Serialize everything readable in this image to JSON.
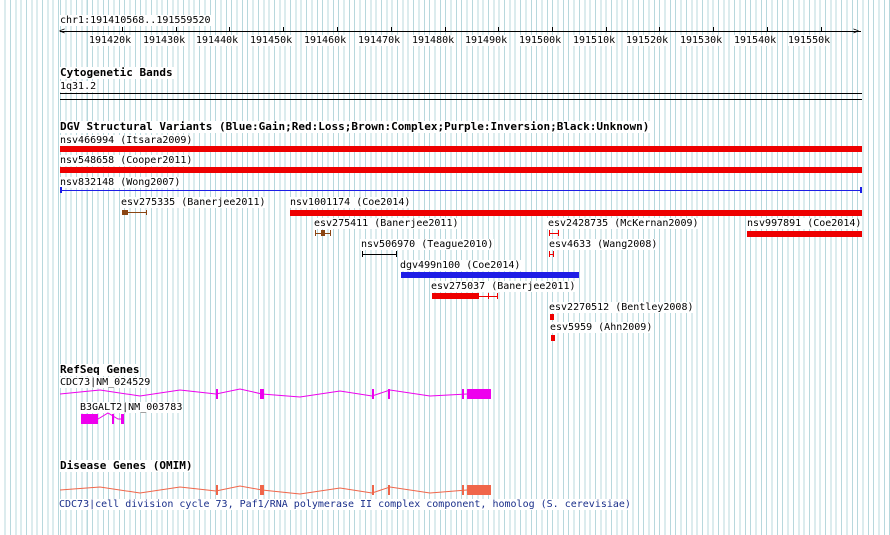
{
  "ruler": {
    "position": "chr1:191410568..191559520",
    "ticks": [
      "191420k",
      "191430k",
      "191440k",
      "191450k",
      "191460k",
      "191470k",
      "191480k",
      "191490k",
      "191500k",
      "191510k",
      "191520k",
      "191530k",
      "191540k",
      "191550k"
    ]
  },
  "cytoband": {
    "title": "Cytogenetic Bands",
    "band": "1q31.2"
  },
  "dgv": {
    "title": "DGV Structural Variants (Blue:Gain;Red:Loss;Brown:Complex;Purple:Inversion;Black:Unknown)",
    "variants": [
      {
        "label": "nsv466994 (Itsara2009)",
        "type": "loss"
      },
      {
        "label": "nsv548658 (Cooper2011)",
        "type": "loss"
      },
      {
        "label": "nsv832148 (Wong2007)",
        "type": "gain"
      },
      {
        "label": "esv275335 (Banerjee2011)",
        "type": "complex"
      },
      {
        "label": "nsv1001174 (Coe2014)",
        "type": "loss"
      },
      {
        "label": "esv275411 (Banerjee2011)",
        "type": "complex"
      },
      {
        "label": "esv2428735 (McKernan2009)",
        "type": "loss"
      },
      {
        "label": "nsv997891 (Coe2014)",
        "type": "loss"
      },
      {
        "label": "nsv506970 (Teague2010)",
        "type": "unknown"
      },
      {
        "label": "esv4633 (Wang2008)",
        "type": "loss"
      },
      {
        "label": "dgv499n100 (Coe2014)",
        "type": "gain"
      },
      {
        "label": "esv275037 (Banerjee2011)",
        "type": "loss"
      },
      {
        "label": "esv2270512 (Bentley2008)",
        "type": "loss"
      },
      {
        "label": "esv5959 (Ahn2009)",
        "type": "loss"
      }
    ]
  },
  "refseq": {
    "title": "RefSeq Genes",
    "genes": [
      {
        "label": "CDC73|NM_024529"
      },
      {
        "label": "B3GALT2|NM_003783"
      }
    ]
  },
  "disease": {
    "title": "Disease Genes (OMIM)",
    "description": "CDC73|cell division cycle 73, Paf1/RNA polymerase II complex component, homolog (S. cerevisiae)"
  },
  "colors": {
    "loss": "#ee0000",
    "gain": "#1e1ee6",
    "complex": "#8b4513",
    "unknown": "#000000",
    "refseq": "#ee00ee",
    "omim": "#f0664a",
    "grid": "#b8d8dd"
  }
}
